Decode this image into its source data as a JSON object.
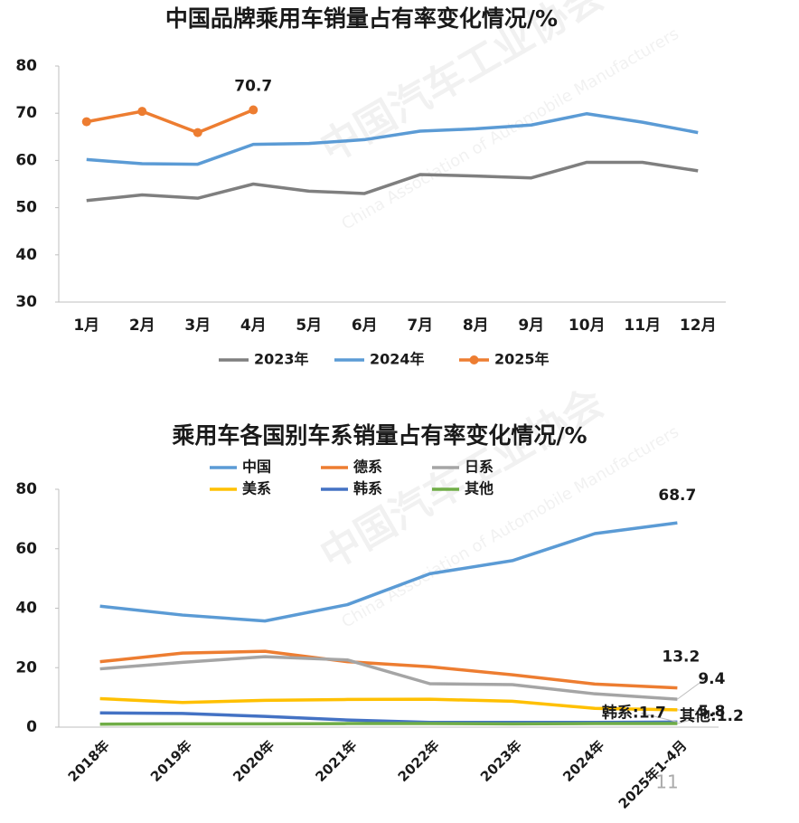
{
  "chart_data": [
    {
      "type": "line",
      "title": "中国品牌乘用车销量占有率变化情况/%",
      "categories": [
        "1月",
        "2月",
        "3月",
        "4月",
        "5月",
        "6月",
        "7月",
        "8月",
        "9月",
        "10月",
        "11月",
        "12月"
      ],
      "series": [
        {
          "name": "2023年",
          "color": "#7f7f7f",
          "values": [
            51.5,
            52.7,
            52.0,
            55.0,
            53.5,
            53.0,
            57.0,
            56.7,
            56.3,
            59.6,
            59.6,
            57.8
          ]
        },
        {
          "name": "2024年",
          "color": "#5b9bd5",
          "values": [
            60.2,
            59.3,
            59.2,
            63.4,
            63.6,
            64.4,
            66.2,
            66.7,
            67.5,
            69.9,
            68.1,
            65.9
          ]
        },
        {
          "name": "2025年",
          "color": "#ed7d31",
          "marker": true,
          "values": [
            68.2,
            70.4,
            65.9,
            70.7,
            null,
            null,
            null,
            null,
            null,
            null,
            null,
            null
          ],
          "value_labels": [
            null,
            null,
            null,
            "70.7",
            null,
            null,
            null,
            null,
            null,
            null,
            null,
            null
          ]
        }
      ],
      "ylim": [
        30,
        80
      ],
      "yticks": [
        30,
        40,
        50,
        60,
        70,
        80
      ],
      "legend": "bottom"
    },
    {
      "type": "line",
      "title": "乘用车各国别车系销量占有率变化情况/%",
      "categories": [
        "2018年",
        "2019年",
        "2020年",
        "2021年",
        "2022年",
        "2023年",
        "2024年",
        "2025年1-4月"
      ],
      "series": [
        {
          "name": "中国",
          "color": "#5b9bd5",
          "values": [
            40.7,
            37.7,
            35.7,
            41.2,
            51.6,
            56.0,
            65.1,
            68.7
          ],
          "value_labels": [
            null,
            null,
            null,
            null,
            null,
            null,
            null,
            "68.7"
          ]
        },
        {
          "name": "德系",
          "color": "#ed7d31",
          "values": [
            22.0,
            24.9,
            25.5,
            22.0,
            20.3,
            17.6,
            14.5,
            13.2
          ],
          "value_labels": [
            null,
            null,
            null,
            null,
            null,
            null,
            null,
            "13.2"
          ]
        },
        {
          "name": "日系",
          "color": "#a5a5a5",
          "values": [
            19.6,
            21.8,
            23.7,
            22.6,
            14.6,
            14.3,
            11.2,
            9.4
          ],
          "value_labels": [
            null,
            null,
            null,
            null,
            null,
            null,
            null,
            "9.4"
          ]
        },
        {
          "name": "美系",
          "color": "#ffc000",
          "values": [
            9.6,
            8.3,
            9.0,
            9.3,
            9.4,
            8.7,
            6.3,
            5.8
          ],
          "value_labels": [
            null,
            null,
            null,
            null,
            null,
            null,
            null,
            "5.8"
          ]
        },
        {
          "name": "韩系",
          "color": "#4472c4",
          "values": [
            4.8,
            4.6,
            3.6,
            2.4,
            1.6,
            1.6,
            1.6,
            1.7
          ],
          "value_labels": [
            null,
            null,
            null,
            null,
            null,
            null,
            null,
            "韩系:1.7"
          ]
        },
        {
          "name": "其他",
          "color": "#70ad47",
          "values": [
            1.0,
            1.1,
            1.1,
            1.2,
            1.2,
            1.1,
            1.2,
            1.2
          ],
          "value_labels": [
            null,
            null,
            null,
            null,
            null,
            null,
            null,
            "其他:1.2"
          ]
        }
      ],
      "ylim": [
        0,
        80
      ],
      "yticks": [
        0,
        20,
        40,
        60,
        80
      ],
      "legend": "top"
    }
  ],
  "watermark": [
    "中国汽车工业协会",
    "China Association of Automobile Manufacturers"
  ],
  "page_number": "11"
}
